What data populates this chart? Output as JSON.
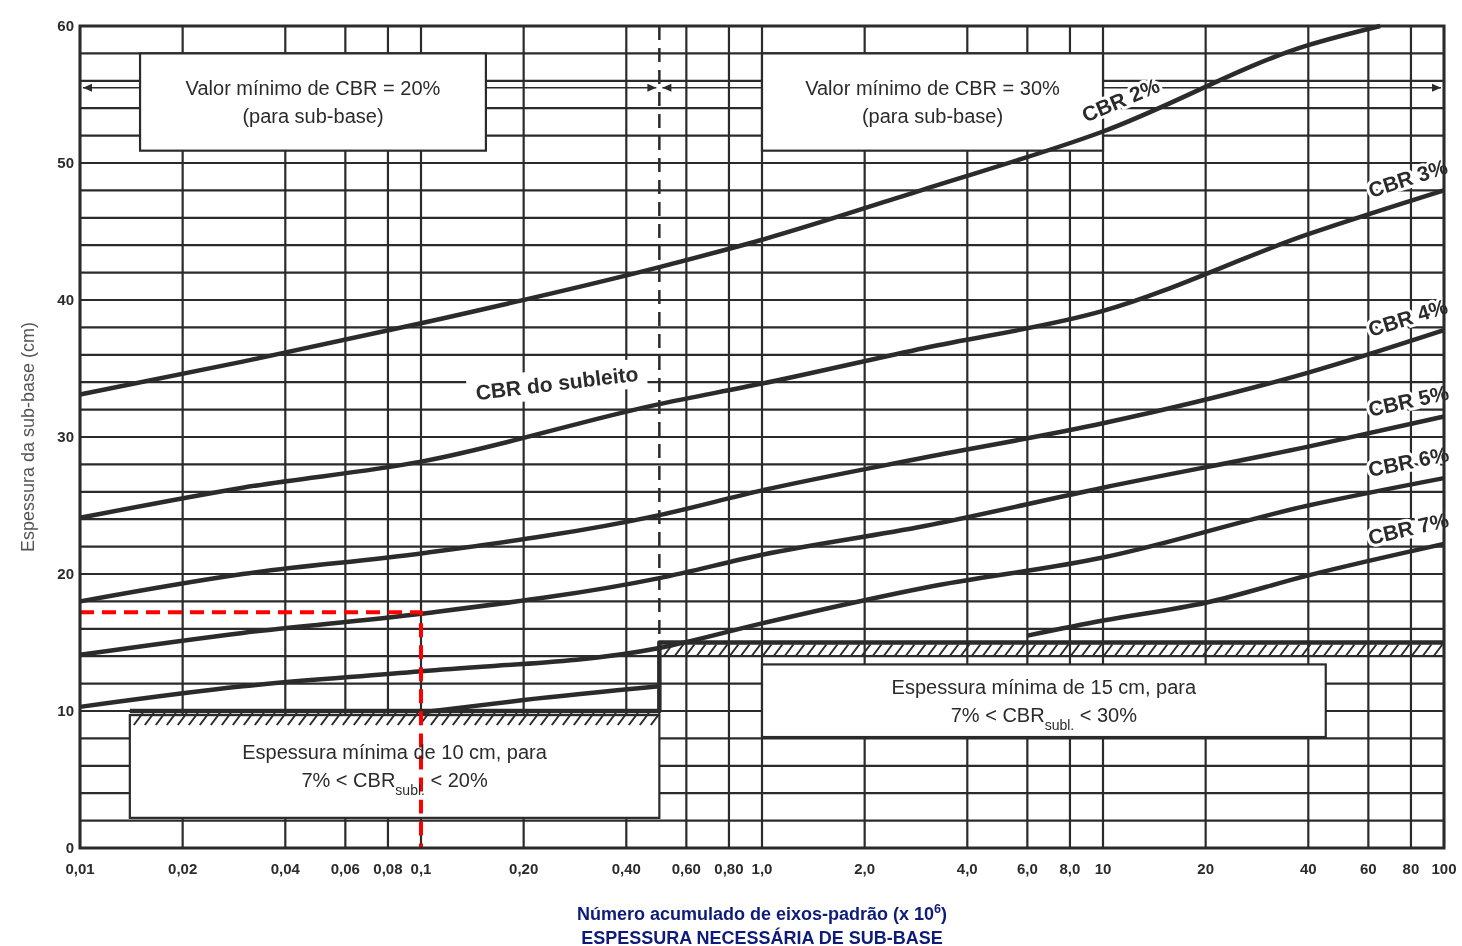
{
  "chart_data": {
    "type": "line",
    "title": "ESPESSURA NECESSÁRIA DE SUB-BASE",
    "xlabel": "Número acumulado de eixos-padrão (x 10$^{6}$)",
    "ylabel": "Espessura da sub-base (cm)",
    "log": "x",
    "grid": true,
    "xlim": [
      0.01,
      100
    ],
    "ylim": [
      0,
      60
    ],
    "xticks": [
      {
        "value": 0.01,
        "label": "0,01"
      },
      {
        "value": 0.02,
        "label": "0,02"
      },
      {
        "value": 0.04,
        "label": "0,04"
      },
      {
        "value": 0.06,
        "label": "0,06"
      },
      {
        "value": 0.08,
        "label": "0,08"
      },
      {
        "value": 0.1,
        "label": "0,1"
      },
      {
        "value": 0.2,
        "label": "0,20"
      },
      {
        "value": 0.4,
        "label": "0,40"
      },
      {
        "value": 0.6,
        "label": "0,60"
      },
      {
        "value": 0.8,
        "label": "0,80"
      },
      {
        "value": 1,
        "label": "1,0"
      },
      {
        "value": 2,
        "label": "2,0"
      },
      {
        "value": 4,
        "label": "4,0"
      },
      {
        "value": 6,
        "label": "6,0"
      },
      {
        "value": 8,
        "label": "8,0"
      },
      10,
      20,
      40,
      60,
      80,
      100
    ],
    "yticks": [
      0,
      {
        "value": 2,
        "label": null
      },
      {
        "value": 4,
        "label": null
      },
      {
        "value": 6,
        "label": null
      },
      {
        "value": 8,
        "label": null
      },
      10,
      {
        "value": 12,
        "label": null
      },
      {
        "value": 14,
        "label": null
      },
      {
        "value": 16,
        "label": null
      },
      {
        "value": 18,
        "label": null
      },
      20,
      {
        "value": 22,
        "label": null
      },
      {
        "value": 24,
        "label": null
      },
      {
        "value": 26,
        "label": null
      },
      {
        "value": 28,
        "label": null
      },
      30,
      {
        "value": 32,
        "label": null
      },
      {
        "value": 34,
        "label": null
      },
      {
        "value": 36,
        "label": null
      },
      {
        "value": 38,
        "label": null
      },
      40,
      {
        "value": 42,
        "label": null
      },
      {
        "value": 44,
        "label": null
      },
      {
        "value": 46,
        "label": null
      },
      {
        "value": 48,
        "label": null
      },
      50,
      {
        "value": 52,
        "label": null
      },
      {
        "value": 54,
        "label": null
      },
      {
        "value": 56,
        "label": null
      },
      {
        "value": 58,
        "label": null
      },
      60
    ],
    "series": [
      {
        "name": "CBR 2%",
        "color": "#2b2b2b",
        "x": [
          0.01,
          0.03,
          0.1,
          0.5,
          1,
          3,
          10,
          40,
          65
        ],
        "values": [
          33.1,
          35.5,
          38.3,
          42.4,
          44.4,
          48.1,
          52.3,
          58.6,
          60
        ]
      },
      {
        "name": "CBR 3%",
        "color": "#2b2b2b",
        "x": [
          0.01,
          0.03,
          0.1,
          0.5,
          1,
          3,
          10,
          40,
          100
        ],
        "values": [
          24.1,
          26.3,
          28.2,
          32.4,
          33.9,
          36.5,
          39.2,
          44.8,
          48.0
        ]
      },
      {
        "name": "CBR 4%",
        "color": "#2b2b2b",
        "x": [
          0.01,
          0.03,
          0.1,
          0.5,
          1,
          3,
          10,
          40,
          100
        ],
        "values": [
          18.0,
          20.0,
          21.5,
          24.3,
          26.1,
          28.5,
          31.0,
          34.7,
          37.8
        ]
      },
      {
        "name": "CBR 5%",
        "color": "#2b2b2b",
        "x": [
          0.01,
          0.03,
          0.1,
          0.5,
          1,
          3,
          10,
          40,
          100
        ],
        "values": [
          14.1,
          15.7,
          17.1,
          19.7,
          21.4,
          23.5,
          26.3,
          29.3,
          31.5
        ]
      },
      {
        "name": "CBR 6%",
        "color": "#2b2b2b",
        "x": [
          0.01,
          0.03,
          0.1,
          0.5,
          1,
          3,
          10,
          40,
          100
        ],
        "values": [
          10.3,
          11.8,
          12.9,
          14.6,
          16.4,
          19.0,
          21.2,
          25.0,
          27.0
        ]
      },
      {
        "name": "CBR 7%",
        "color": "#2b2b2b",
        "x": [
          0.1,
          0.2,
          0.5,
          1,
          6,
          10,
          20,
          40,
          100
        ],
        "values": [
          9.9,
          10.8,
          11.8,
          null,
          15.5,
          16.6,
          17.9,
          19.9,
          22.2
        ]
      },
      {
        "color": "#2b2b2b",
        "x": [
          0.014,
          0.5,
          0.5,
          100
        ],
        "values": [
          10,
          10,
          15,
          15
        ]
      },
      {
        "color": "#ff0000",
        "line_style": "dashed",
        "x": [
          0.01,
          0.1,
          0.1
        ],
        "values": [
          17.2,
          17.2,
          0
        ]
      }
    ],
    "ref_lines": [
      {
        "axis": "x",
        "value": 0.5,
        "color": "#2b2b2b",
        "line_style": "dashed"
      }
    ],
    "annotations": [
      "Valor mínimo de CBR = 20%\n(para sub-base)",
      "Valor mínimo de CBR = 30%\n(para sub-base)",
      "Espessura mínima de 10 cm, para\n7% < CBR$_{subl.}$ < 20%",
      "Espessura mínima de 15 cm, para\n7% < CBR$_{subl.}$ < 30%",
      "CBR do subleito"
    ]
  }
}
